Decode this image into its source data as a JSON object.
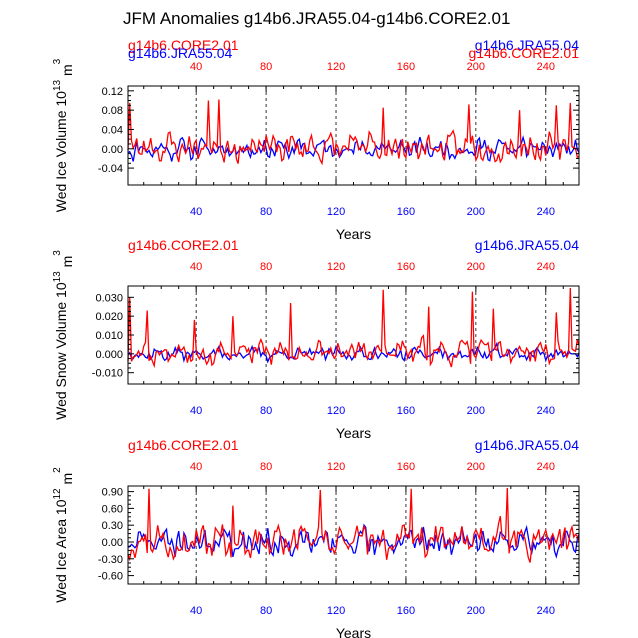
{
  "figure_title": "JFM Anomalies g14b6.JRA55.04-g14b6.CORE2.01",
  "chart_data": [
    {
      "type": "line",
      "title": "JFM Anomalies g14b6.JRA55.04-g14b6.CORE2.01",
      "ylabel": "Wed Ice Volume 10",
      "ylabel_exp": "13",
      "ylabel_unit": " m",
      "ylabel_unit_exp": "3",
      "xlabel": "Years",
      "xlim": [
        1,
        259
      ],
      "ylim": [
        -0.075,
        0.13
      ],
      "yticks": [
        -0.04,
        0.0,
        0.04,
        0.08,
        0.12
      ],
      "ytick_labels": [
        "-0.04",
        "0.00",
        "0.04",
        "0.08",
        "0.12"
      ],
      "xticks": [
        40,
        80,
        120,
        160,
        200,
        240
      ],
      "xtick_labels": [
        "40",
        "80",
        "120",
        "160",
        "200",
        "240"
      ],
      "vlines": [
        40,
        80,
        120,
        160,
        200,
        240
      ],
      "top_left_label": "g14b6.CORE2.01",
      "top_right_label": "g14b6.JRA55.04",
      "overlap_left_label": "g14b6.JRA55.04",
      "overlap_right_label": "g14b6.CORE2.01",
      "series": [
        {
          "name": "g14b6.JRA55.04",
          "color": "#0000ff",
          "amp": 0.026,
          "offset": 0,
          "seed": 11,
          "peaks": []
        },
        {
          "name": "g14b6.CORE2.01",
          "color": "#ff0000",
          "amp": 0.036,
          "offset": 0.003,
          "seed": 23,
          "peaks": [
            [
              2,
              0.095
            ],
            [
              47,
              0.1
            ],
            [
              53,
              0.102
            ],
            [
              147,
              0.085
            ],
            [
              196,
              0.092
            ],
            [
              225,
              0.08
            ],
            [
              246,
              0.09
            ],
            [
              254,
              0.095
            ]
          ]
        }
      ]
    },
    {
      "type": "line",
      "ylabel": "Wed Snow Volume 10",
      "ylabel_exp": "13",
      "ylabel_unit": " m",
      "ylabel_unit_exp": "3",
      "xlabel": "Years",
      "xlim": [
        1,
        259
      ],
      "ylim": [
        -0.016,
        0.036
      ],
      "yticks": [
        -0.01,
        0.0,
        0.01,
        0.02,
        0.03
      ],
      "ytick_labels": [
        "-0.010",
        "0.000",
        "0.010",
        "0.020",
        "0.030"
      ],
      "xticks": [
        40,
        80,
        120,
        160,
        200,
        240
      ],
      "xtick_labels": [
        "40",
        "80",
        "120",
        "160",
        "200",
        "240"
      ],
      "vlines": [
        40,
        80,
        120,
        160,
        200,
        240
      ],
      "top_left_label": "g14b6.CORE2.01",
      "top_right_label": "g14b6.JRA55.04",
      "series": [
        {
          "name": "g14b6.JRA55.04",
          "color": "#0000ff",
          "amp": 0.0045,
          "offset": 0,
          "seed": 37,
          "peaks": []
        },
        {
          "name": "g14b6.CORE2.01",
          "color": "#ff0000",
          "amp": 0.008,
          "offset": 0.001,
          "seed": 53,
          "peaks": [
            [
              2,
              0.03
            ],
            [
              12,
              0.023
            ],
            [
              39,
              0.018
            ],
            [
              61,
              0.02
            ],
            [
              94,
              0.027
            ],
            [
              147,
              0.034
            ],
            [
              173,
              0.025
            ],
            [
              198,
              0.033
            ],
            [
              210,
              0.024
            ],
            [
              246,
              0.022
            ],
            [
              254,
              0.035
            ]
          ]
        }
      ]
    },
    {
      "type": "line",
      "ylabel": "Wed Ice Area 10",
      "ylabel_exp": "12",
      "ylabel_unit": " m",
      "ylabel_unit_exp": "2",
      "xlabel": "Years",
      "xlim": [
        1,
        259
      ],
      "ylim": [
        -0.75,
        1.0
      ],
      "yticks": [
        -0.6,
        -0.3,
        0.0,
        0.3,
        0.6,
        0.9
      ],
      "ytick_labels": [
        "-0.60",
        "-0.30",
        "0.00",
        "0.30",
        "0.60",
        "0.90"
      ],
      "xticks": [
        40,
        80,
        120,
        160,
        200,
        240
      ],
      "xtick_labels": [
        "40",
        "80",
        "120",
        "160",
        "200",
        "240"
      ],
      "vlines": [
        40,
        80,
        120,
        160,
        200,
        240
      ],
      "top_left_label": "g14b6.CORE2.01",
      "top_right_label": "g14b6.JRA55.04",
      "series": [
        {
          "name": "g14b6.JRA55.04",
          "color": "#0000ff",
          "amp": 0.3,
          "offset": 0,
          "seed": 71,
          "peaks": []
        },
        {
          "name": "g14b6.CORE2.01",
          "color": "#ff0000",
          "amp": 0.36,
          "offset": 0.02,
          "seed": 97,
          "peaks": [
            [
              13,
              0.95
            ],
            [
              61,
              0.65
            ],
            [
              111,
              0.93
            ],
            [
              163,
              0.95
            ],
            [
              218,
              0.98
            ]
          ]
        }
      ]
    }
  ]
}
